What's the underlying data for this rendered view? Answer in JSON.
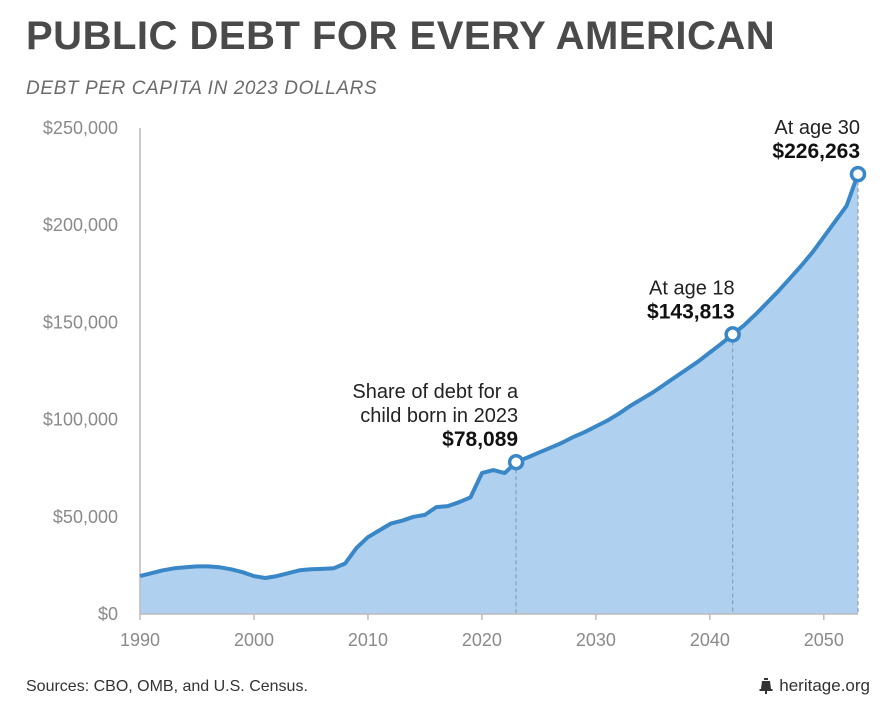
{
  "header": {
    "title": "PUBLIC DEBT FOR EVERY AMERICAN",
    "subtitle": "DEBT PER CAPITA IN 2023 DOLLARS"
  },
  "footer": {
    "source": "Sources: CBO, OMB, and U.S. Census.",
    "brand": "heritage.org",
    "brand_icon": "liberty-bell-icon"
  },
  "colors": {
    "line": "#3a87c8",
    "fill": "#afd0ee",
    "axis": "#bcbcbc",
    "dashed": "#8aa0b4"
  },
  "chart_data": {
    "type": "area",
    "title": "PUBLIC DEBT FOR EVERY AMERICAN",
    "subtitle": "DEBT PER CAPITA IN 2023 DOLLARS",
    "xlim": [
      1990,
      2053
    ],
    "ylim": [
      0,
      250000
    ],
    "x_ticks": [
      1990,
      2000,
      2010,
      2020,
      2030,
      2040,
      2050
    ],
    "x_tick_labels": [
      "1990",
      "2000",
      "2010",
      "2020",
      "2030",
      "2040",
      "2050"
    ],
    "y_ticks": [
      0,
      50000,
      100000,
      150000,
      200000,
      250000
    ],
    "y_tick_labels": [
      "$0",
      "$50,000",
      "$100,000",
      "$150,000",
      "$200,000",
      "$250,000"
    ],
    "grid": false,
    "series": [
      {
        "x": [
          1990,
          1991,
          1992,
          1993,
          1994,
          1995,
          1996,
          1997,
          1998,
          1999,
          2000,
          2001,
          2002,
          2003,
          2004,
          2005,
          2006,
          2007,
          2008,
          2009,
          2010,
          2011,
          2012,
          2013,
          2014,
          2015,
          2016,
          2017,
          2018,
          2019,
          2020,
          2021,
          2022,
          2023,
          2024,
          2025,
          2026,
          2027,
          2028,
          2029,
          2030,
          2031,
          2032,
          2033,
          2034,
          2035,
          2036,
          2037,
          2038,
          2039,
          2040,
          2041,
          2042,
          2043,
          2044,
          2045,
          2046,
          2047,
          2048,
          2049,
          2050,
          2051,
          2052,
          2053
        ],
        "y": [
          19500,
          21000,
          22500,
          23500,
          24000,
          24500,
          24500,
          24000,
          23000,
          21500,
          19500,
          18500,
          19500,
          21000,
          22500,
          23000,
          23200,
          23500,
          26000,
          34000,
          39500,
          43000,
          46500,
          48000,
          50000,
          51000,
          55000,
          55500,
          57500,
          60000,
          72500,
          74000,
          72500,
          78089,
          80500,
          83000,
          85500,
          88000,
          91000,
          93500,
          96500,
          99500,
          103000,
          107000,
          110500,
          114000,
          118000,
          122000,
          126000,
          130000,
          134500,
          139000,
          143813,
          148500,
          154000,
          160000,
          166000,
          172500,
          179000,
          186000,
          194000,
          202000,
          210000,
          226263
        ]
      }
    ],
    "annotations": [
      {
        "x": 2023,
        "y": 78089,
        "lines": [
          "Share of debt for a",
          "child born in 2023"
        ],
        "value": "$78,089"
      },
      {
        "x": 2042,
        "y": 143813,
        "lines": [
          "At age 18"
        ],
        "value": "$143,813"
      },
      {
        "x": 2053,
        "y": 226263,
        "lines": [
          "At age 30"
        ],
        "value": "$226,263"
      }
    ]
  }
}
